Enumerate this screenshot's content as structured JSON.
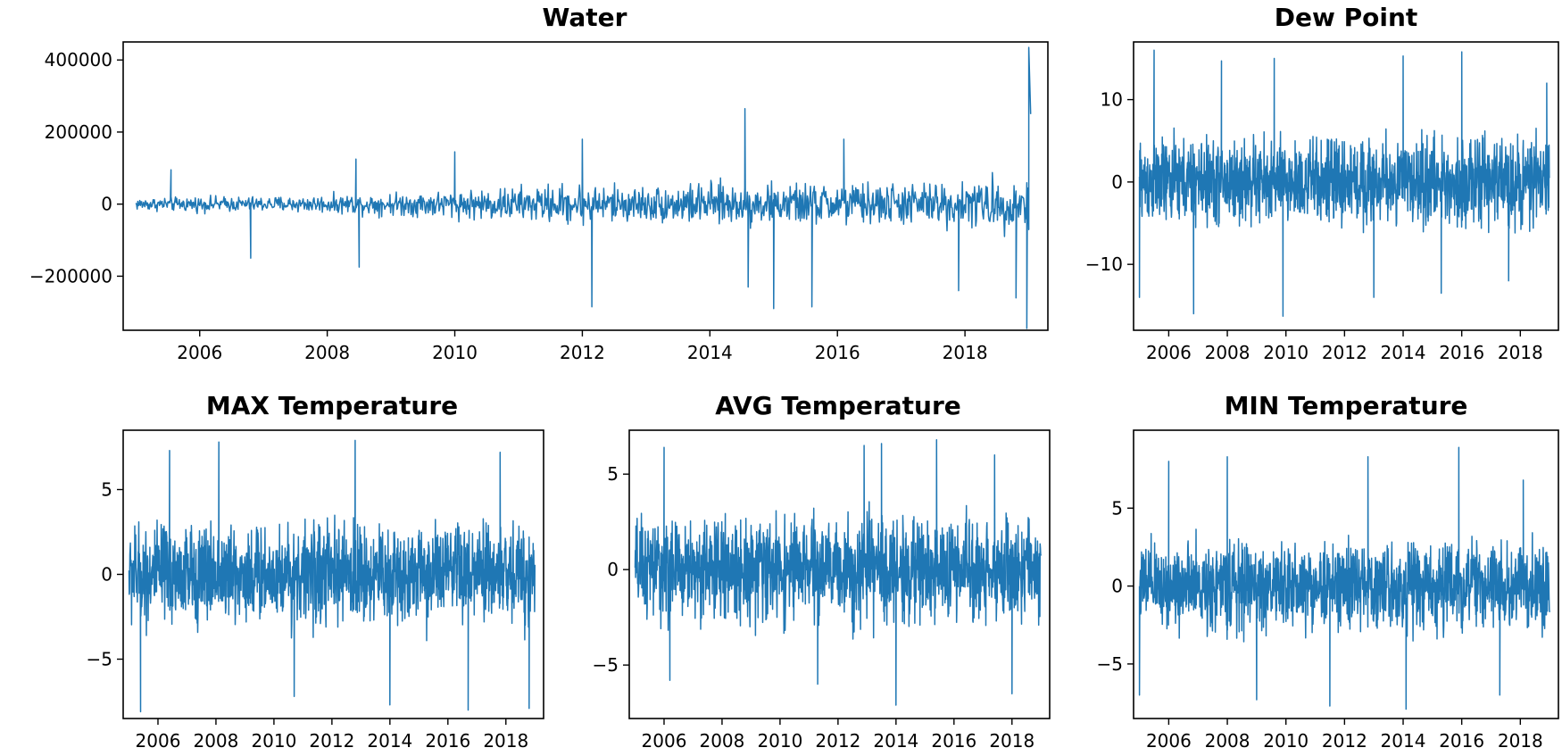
{
  "series_color": "#1f77b4",
  "chart_data": [
    {
      "id": "water",
      "type": "line",
      "title": "Water",
      "xlabel": "",
      "ylabel": "",
      "xlim": [
        2004.8,
        2019.3
      ],
      "ylim": [
        -350000,
        450000
      ],
      "xticks": [
        2006,
        2008,
        2010,
        2012,
        2014,
        2016,
        2018
      ],
      "xtick_labels": [
        "2006",
        "2008",
        "2010",
        "2012",
        "2014",
        "2016",
        "2018"
      ],
      "yticks": [
        -200000,
        0,
        200000,
        400000
      ],
      "ytick_labels": [
        "−200000",
        "0",
        "200000",
        "400000"
      ],
      "x_start": 2005.0,
      "x_end": 2019.0,
      "series": [
        {
          "name": "Water",
          "envelope_x": [
            2005,
            2006,
            2007,
            2008,
            2009,
            2010,
            2011,
            2012,
            2013,
            2014,
            2015,
            2016,
            2017,
            2018,
            2019
          ],
          "envelope_y": [
            25000,
            30000,
            30000,
            35000,
            45000,
            55000,
            70000,
            80000,
            70000,
            85000,
            80000,
            85000,
            85000,
            90000,
            110000
          ]
        }
      ],
      "extremes": [
        {
          "x": 2005.55,
          "y": 95000
        },
        {
          "x": 2006.8,
          "y": -150000
        },
        {
          "x": 2008.5,
          "y": -175000
        },
        {
          "x": 2008.45,
          "y": 125000
        },
        {
          "x": 2010.0,
          "y": 145000
        },
        {
          "x": 2012.15,
          "y": -285000
        },
        {
          "x": 2012.0,
          "y": 180000
        },
        {
          "x": 2014.55,
          "y": 265000
        },
        {
          "x": 2014.6,
          "y": -230000
        },
        {
          "x": 2015.0,
          "y": -290000
        },
        {
          "x": 2015.6,
          "y": -285000
        },
        {
          "x": 2016.1,
          "y": 180000
        },
        {
          "x": 2017.9,
          "y": -240000
        },
        {
          "x": 2018.8,
          "y": -260000
        },
        {
          "x": 2018.97,
          "y": -345000
        },
        {
          "x": 2019.0,
          "y": 435000
        },
        {
          "x": 2019.03,
          "y": 250000
        }
      ]
    },
    {
      "id": "dew",
      "type": "line",
      "title": "Dew Point",
      "xlabel": "",
      "ylabel": "",
      "xlim": [
        2004.8,
        2019.3
      ],
      "ylim": [
        -18,
        17
      ],
      "xticks": [
        2006,
        2008,
        2010,
        2012,
        2014,
        2016,
        2018
      ],
      "xtick_labels": [
        "2006",
        "2008",
        "2010",
        "2012",
        "2014",
        "2016",
        "2018"
      ],
      "yticks": [
        -10,
        0,
        10
      ],
      "ytick_labels": [
        "−10",
        "0",
        "10"
      ],
      "x_start": 2005.0,
      "x_end": 2019.0,
      "series": [
        {
          "name": "Dew Point",
          "envelope_x": [
            2005,
            2019
          ],
          "envelope_y": [
            7.5,
            7.5
          ]
        }
      ],
      "extremes": [
        {
          "x": 2005.0,
          "y": -14
        },
        {
          "x": 2005.5,
          "y": 16
        },
        {
          "x": 2006.85,
          "y": -16
        },
        {
          "x": 2007.8,
          "y": 14.7
        },
        {
          "x": 2009.9,
          "y": -16.3
        },
        {
          "x": 2009.6,
          "y": 15
        },
        {
          "x": 2013.0,
          "y": -14
        },
        {
          "x": 2014.0,
          "y": 15.3
        },
        {
          "x": 2016.0,
          "y": 15.8
        },
        {
          "x": 2015.3,
          "y": -13.5
        },
        {
          "x": 2017.6,
          "y": -12
        },
        {
          "x": 2018.9,
          "y": 12
        }
      ]
    },
    {
      "id": "max",
      "type": "line",
      "title": "MAX Temperature",
      "xlabel": "",
      "ylabel": "",
      "xlim": [
        2004.8,
        2019.3
      ],
      "ylim": [
        -8.5,
        8.5
      ],
      "xticks": [
        2006,
        2008,
        2010,
        2012,
        2014,
        2016,
        2018
      ],
      "xtick_labels": [
        "2006",
        "2008",
        "2010",
        "2012",
        "2014",
        "2016",
        "2018"
      ],
      "yticks": [
        -5,
        0,
        5
      ],
      "ytick_labels": [
        "−5",
        "0",
        "5"
      ],
      "x_start": 2005.0,
      "x_end": 2019.0,
      "series": [
        {
          "name": "MAX Temperature",
          "envelope_x": [
            2005,
            2019
          ],
          "envelope_y": [
            4.2,
            4.2
          ]
        }
      ],
      "extremes": [
        {
          "x": 2005.4,
          "y": -8.1
        },
        {
          "x": 2006.4,
          "y": 7.3
        },
        {
          "x": 2008.1,
          "y": 7.8
        },
        {
          "x": 2010.7,
          "y": -7.2
        },
        {
          "x": 2012.8,
          "y": 7.9
        },
        {
          "x": 2014.0,
          "y": -7.7
        },
        {
          "x": 2016.7,
          "y": -8.0
        },
        {
          "x": 2017.8,
          "y": 7.2
        },
        {
          "x": 2018.8,
          "y": -7.9
        }
      ]
    },
    {
      "id": "avg",
      "type": "line",
      "title": "AVG Temperature",
      "xlabel": "",
      "ylabel": "",
      "xlim": [
        2004.8,
        2019.3
      ],
      "ylim": [
        -7.8,
        7.3
      ],
      "xticks": [
        2006,
        2008,
        2010,
        2012,
        2014,
        2016,
        2018
      ],
      "xtick_labels": [
        "2006",
        "2008",
        "2010",
        "2012",
        "2014",
        "2016",
        "2018"
      ],
      "yticks": [
        -5,
        0,
        5
      ],
      "ytick_labels": [
        "−5",
        "0",
        "5"
      ],
      "x_start": 2005.0,
      "x_end": 2019.0,
      "series": [
        {
          "name": "AVG Temperature",
          "envelope_x": [
            2005,
            2019
          ],
          "envelope_y": [
            3.8,
            3.8
          ]
        }
      ],
      "extremes": [
        {
          "x": 2006.0,
          "y": 6.4
        },
        {
          "x": 2006.2,
          "y": -5.8
        },
        {
          "x": 2011.3,
          "y": -6.0
        },
        {
          "x": 2012.9,
          "y": 6.5
        },
        {
          "x": 2013.5,
          "y": 6.6
        },
        {
          "x": 2014.0,
          "y": -7.1
        },
        {
          "x": 2015.4,
          "y": 6.8
        },
        {
          "x": 2017.4,
          "y": 6.0
        },
        {
          "x": 2018.0,
          "y": -6.5
        }
      ]
    },
    {
      "id": "min",
      "type": "line",
      "title": "MIN Temperature",
      "xlabel": "",
      "ylabel": "",
      "xlim": [
        2004.8,
        2019.3
      ],
      "ylim": [
        -8.5,
        10
      ],
      "xticks": [
        2006,
        2008,
        2010,
        2012,
        2014,
        2016,
        2018
      ],
      "xtick_labels": [
        "2006",
        "2008",
        "2010",
        "2012",
        "2014",
        "2016",
        "2018"
      ],
      "yticks": [
        -5,
        0,
        5
      ],
      "ytick_labels": [
        "−5",
        "0",
        "5"
      ],
      "x_start": 2005.0,
      "x_end": 2019.0,
      "series": [
        {
          "name": "MIN Temperature",
          "envelope_x": [
            2005,
            2019
          ],
          "envelope_y": [
            4.0,
            4.0
          ]
        }
      ],
      "extremes": [
        {
          "x": 2005.0,
          "y": -7.0
        },
        {
          "x": 2006.0,
          "y": 8.0
        },
        {
          "x": 2008.0,
          "y": 8.3
        },
        {
          "x": 2009.0,
          "y": -7.3
        },
        {
          "x": 2011.5,
          "y": -7.7
        },
        {
          "x": 2012.8,
          "y": 8.3
        },
        {
          "x": 2014.1,
          "y": -7.9
        },
        {
          "x": 2015.9,
          "y": 8.9
        },
        {
          "x": 2017.3,
          "y": -7.0
        },
        {
          "x": 2018.1,
          "y": 6.8
        }
      ]
    }
  ]
}
